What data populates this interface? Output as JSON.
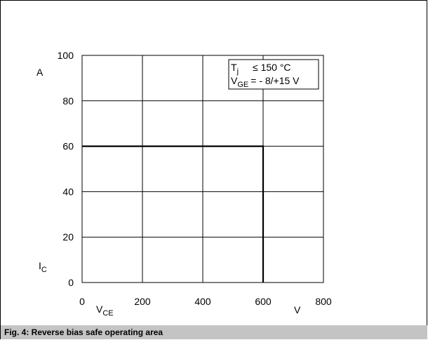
{
  "chart_data": {
    "type": "line",
    "ylabel_unit": "A",
    "ylabel_main": "I",
    "ylabel_sub": "C",
    "xlabel_unit": "V",
    "xlabel_main": "V",
    "xlabel_sub": "CE",
    "xlim": [
      0,
      800
    ],
    "ylim": [
      0,
      100
    ],
    "x_ticks": [
      0,
      200,
      400,
      600,
      800
    ],
    "y_ticks": [
      0,
      20,
      40,
      60,
      80,
      100
    ],
    "grid": true,
    "series": [
      {
        "x": [
          0,
          600,
          600
        ],
        "y": [
          60,
          60,
          0
        ]
      }
    ],
    "legend_box": {
      "line1_main": "T",
      "line1_sub": "j",
      "line1_rest": "≤ 150 °C",
      "line2_main": "V",
      "line2_sub": "GE",
      "line2_rest": "= - 8/+15 V",
      "position": "top-right"
    }
  },
  "caption": "Fig. 4: Reverse bias safe operating area"
}
